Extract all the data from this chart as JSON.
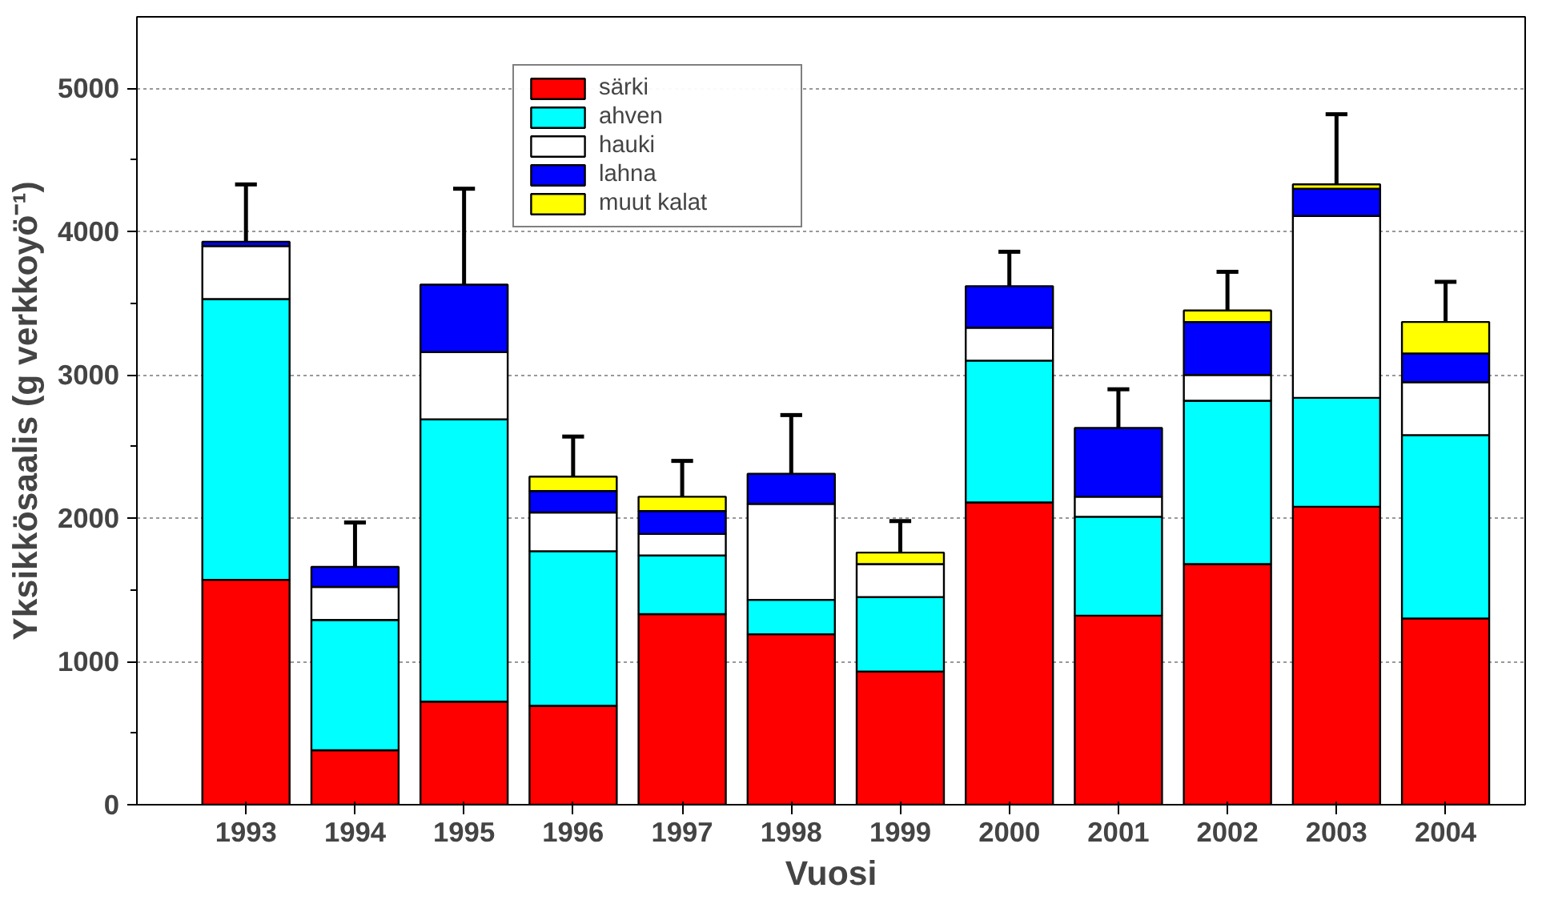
{
  "chart_data": {
    "type": "bar",
    "stacked": true,
    "xlabel": "Vuosi",
    "ylabel": "Yksikkösaalis (g verkkoyö⁻¹)",
    "categories": [
      "1993",
      "1994",
      "1995",
      "1996",
      "1997",
      "1998",
      "1999",
      "2000",
      "2001",
      "2002",
      "2003",
      "2004"
    ],
    "series": [
      {
        "name": "särki",
        "color": "#ff0000",
        "values": [
          1570,
          380,
          720,
          690,
          1330,
          1190,
          930,
          2110,
          1320,
          1680,
          2080,
          1300
        ]
      },
      {
        "name": "ahven",
        "color": "#00ffff",
        "values": [
          1960,
          910,
          1970,
          1080,
          410,
          240,
          520,
          990,
          690,
          1140,
          760,
          1280
        ]
      },
      {
        "name": "hauki",
        "color": "#ffffff",
        "values": [
          370,
          230,
          470,
          270,
          150,
          670,
          230,
          230,
          140,
          180,
          1270,
          370
        ]
      },
      {
        "name": "lahna",
        "color": "#0000ff",
        "values": [
          30,
          140,
          470,
          150,
          160,
          210,
          null,
          290,
          480,
          370,
          190,
          200
        ]
      },
      {
        "name": "muut kalat",
        "color": "#ffff00",
        "values": [
          0,
          0,
          0,
          100,
          100,
          0,
          80,
          0,
          0,
          80,
          30,
          220
        ],
        "errors": [
          [
            3930,
            4330
          ],
          [
            1660,
            1970
          ],
          [
            3630,
            4300
          ],
          [
            2290,
            2570
          ],
          [
            2150,
            2400
          ],
          [
            2310,
            2720
          ],
          [
            1760,
            1980
          ],
          [
            3620,
            3860
          ],
          [
            2630,
            2900
          ],
          [
            3450,
            3720
          ],
          [
            4330,
            4820
          ],
          [
            3370,
            3650
          ]
        ]
      }
    ],
    "ylim": [
      0,
      5500
    ],
    "yticks": [
      0,
      1000,
      2000,
      3000,
      4000,
      5000
    ],
    "grid": "y",
    "legend": "top"
  }
}
